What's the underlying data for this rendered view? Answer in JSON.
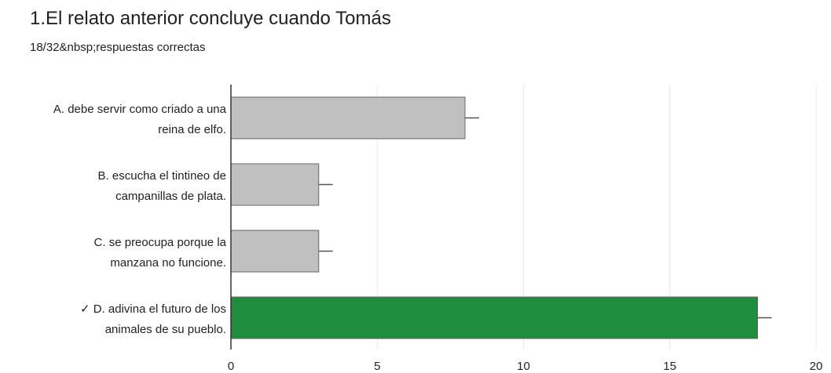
{
  "question": {
    "title": "1.El relato anterior concluye cuando Tomás",
    "summary": "18/32&nbsp;respuestas correctas"
  },
  "colors": {
    "bar_default": "#c0c0c0",
    "bar_correct": "#1e8e3e",
    "bar_stroke": "#666666",
    "grid": "#e8e8e8",
    "axis": "#333333"
  },
  "chart_data": {
    "type": "bar",
    "orientation": "horizontal",
    "categories": [
      [
        "A. debe servir como criado a una",
        "reina de elfo."
      ],
      [
        "B. escucha el tintineo de",
        "campanillas de plata."
      ],
      [
        "C. se preocupa porque la",
        "manzana no funcione."
      ],
      [
        "✓ D. adivina el futuro de los",
        "animales de su pueblo."
      ]
    ],
    "values": [
      8,
      3,
      3,
      18
    ],
    "correct_index": 3,
    "xlim": [
      0,
      20
    ],
    "xticks": [
      0,
      5,
      10,
      15,
      20
    ],
    "grid": true,
    "xlabel": "",
    "ylabel": ""
  }
}
